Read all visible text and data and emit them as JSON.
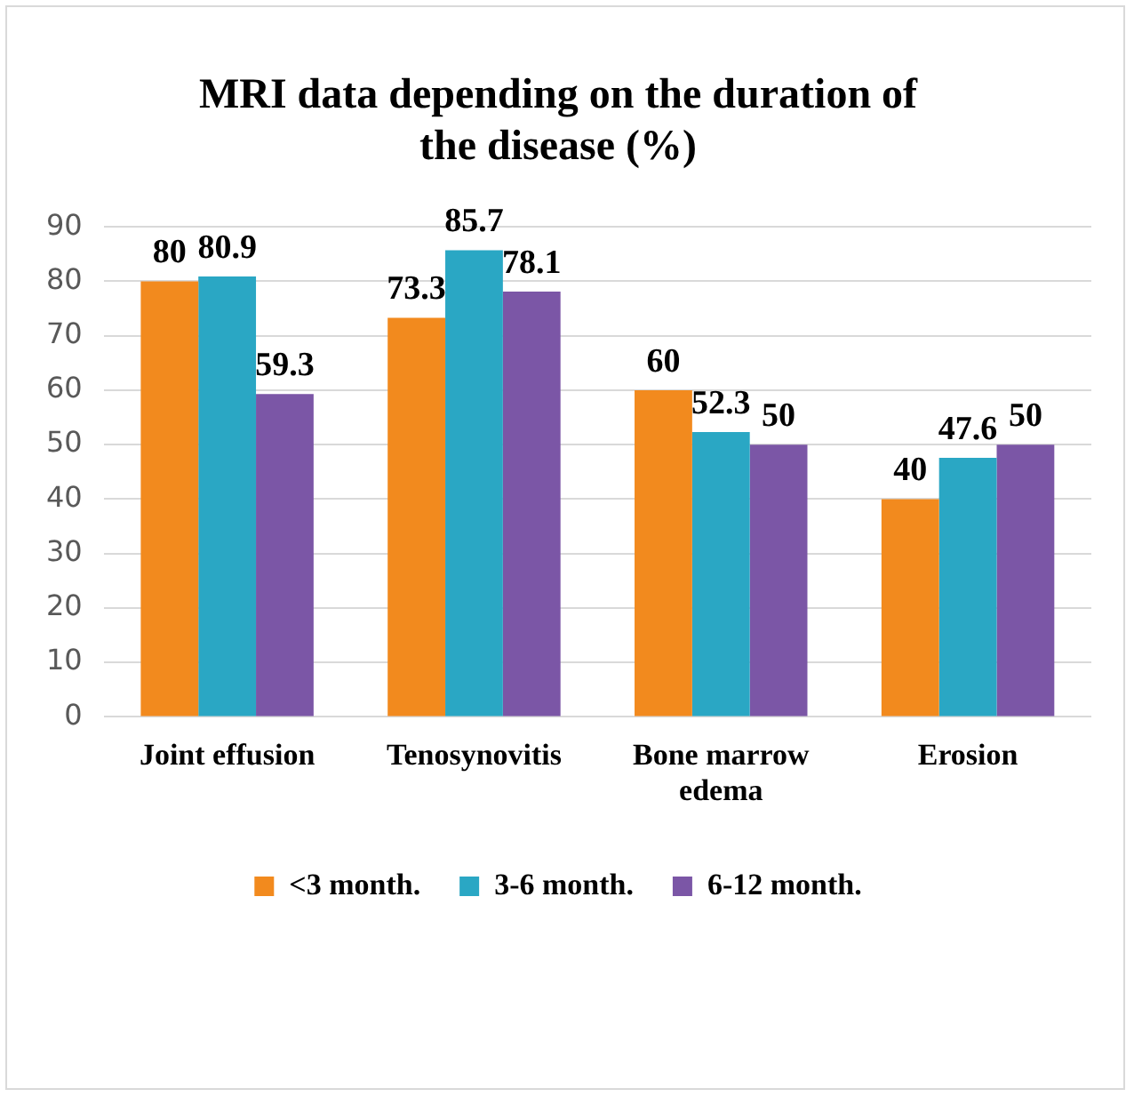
{
  "chart_data": {
    "type": "bar",
    "title": "MRI data depending on the duration of the disease (%)",
    "categories": [
      "Joint effusion",
      "Tenosynovitis",
      "Bone marrow edema",
      "Erosion"
    ],
    "series": [
      {
        "name": "<3 month.",
        "color": "#f28a1e",
        "values": [
          80,
          73.3,
          60,
          40
        ]
      },
      {
        "name": "3-6 month.",
        "color": "#2aa7c4",
        "values": [
          80.9,
          85.7,
          52.3,
          47.6
        ]
      },
      {
        "name": "6-12 month.",
        "color": "#7b56a6",
        "values": [
          59.3,
          78.1,
          50,
          50
        ]
      }
    ],
    "ylim": [
      0,
      90
    ],
    "yticks": [
      0,
      10,
      20,
      30,
      40,
      50,
      60,
      70,
      80,
      90
    ],
    "grid": "y",
    "legend": "bottom",
    "data_labels": true
  }
}
